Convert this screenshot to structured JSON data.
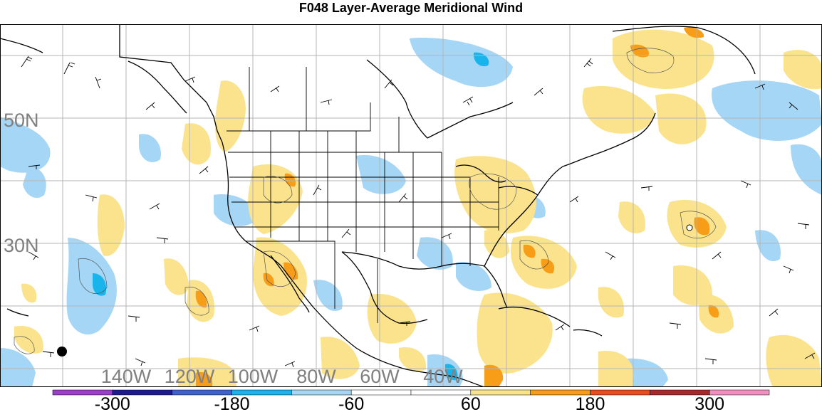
{
  "title": "F048 Layer-Average Meridional Wind",
  "lat_labels": [
    {
      "label": "50N",
      "lat": 50
    },
    {
      "label": "30N",
      "lat": 30
    }
  ],
  "lon_labels": [
    {
      "label": "140W",
      "lon": -140
    },
    {
      "label": "120W",
      "lon": -120
    },
    {
      "label": "100W",
      "lon": -100
    },
    {
      "label": "80W",
      "lon": -80
    },
    {
      "label": "60W",
      "lon": -60
    },
    {
      "label": "40W",
      "lon": -40
    }
  ],
  "colorbar": {
    "colors": [
      "#9a3fc7",
      "#1c1c8c",
      "#3d62c9",
      "#19b4ec",
      "#a6d6f5",
      "#ffffff",
      "#ffffff",
      "#fbe38e",
      "#f79d18",
      "#ec4b1e",
      "#a62a2a",
      "#f28fc1"
    ],
    "labels": [
      "-300",
      "-180",
      "-60",
      "60",
      "180",
      "300"
    ]
  },
  "colors": {
    "positive_light": "#fbe38e",
    "positive_mid": "#f79d18",
    "negative_light": "#a6d6f5",
    "negative_mid": "#19b4ec",
    "grid": "#b4b4b4",
    "coast": "#000000"
  }
}
